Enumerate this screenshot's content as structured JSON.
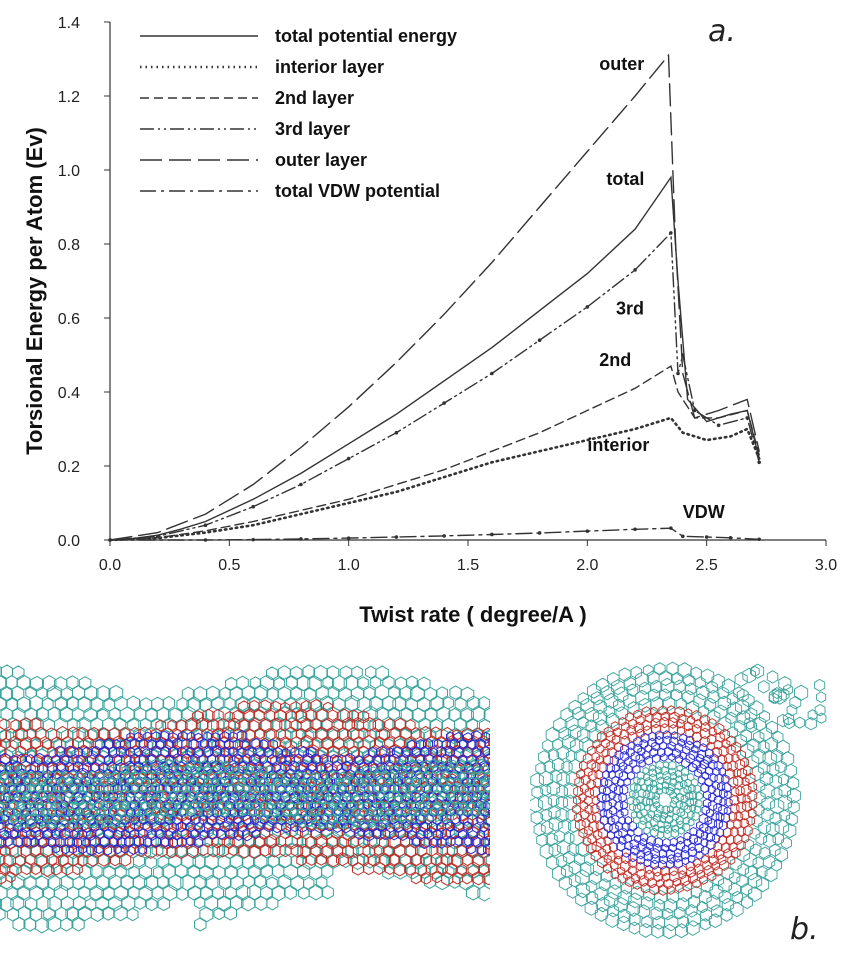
{
  "panel_labels": {
    "a": "a.",
    "b": "b."
  },
  "chart_data": {
    "type": "line",
    "title": "",
    "xlabel": "Twist rate ( degree/A )",
    "ylabel": "Torsional Energy per Atom (Ev)",
    "xlim": [
      0.0,
      3.0
    ],
    "ylim": [
      0.0,
      1.4
    ],
    "x_ticks": [
      "0.0",
      "0.5",
      "1.0",
      "1.5",
      "2.0",
      "2.5",
      "3.0"
    ],
    "y_ticks": [
      "0.0",
      "0.2",
      "0.4",
      "0.6",
      "0.8",
      "1.0",
      "1.2",
      "1.4"
    ],
    "grid": false,
    "legend_position": "top-left",
    "series": [
      {
        "name": "total potential energy",
        "style": "solid",
        "color": "#333333",
        "x": [
          0,
          0.1,
          0.2,
          0.3,
          0.4,
          0.6,
          0.8,
          1.0,
          1.2,
          1.4,
          1.6,
          1.8,
          2.0,
          2.2,
          2.35,
          2.38,
          2.42,
          2.5,
          2.6,
          2.67,
          2.72
        ],
        "y": [
          0,
          0.004,
          0.013,
          0.03,
          0.05,
          0.11,
          0.18,
          0.26,
          0.34,
          0.43,
          0.52,
          0.62,
          0.72,
          0.84,
          0.98,
          0.7,
          0.38,
          0.32,
          0.34,
          0.35,
          0.22
        ]
      },
      {
        "name": "interior layer",
        "style": "dotted",
        "color": "#333333",
        "x": [
          0,
          0.2,
          0.4,
          0.6,
          0.8,
          1.0,
          1.2,
          1.4,
          1.6,
          1.8,
          2.0,
          2.2,
          2.35,
          2.4,
          2.5,
          2.6,
          2.67,
          2.72
        ],
        "y": [
          0,
          0.005,
          0.02,
          0.04,
          0.07,
          0.1,
          0.13,
          0.17,
          0.21,
          0.24,
          0.27,
          0.3,
          0.33,
          0.29,
          0.27,
          0.28,
          0.3,
          0.22
        ]
      },
      {
        "name": "2nd layer",
        "style": "dashed",
        "color": "#333333",
        "x": [
          0,
          0.2,
          0.4,
          0.6,
          0.8,
          1.0,
          1.2,
          1.4,
          1.6,
          1.8,
          2.0,
          2.2,
          2.35,
          2.38,
          2.45,
          2.55,
          2.67,
          2.72
        ],
        "y": [
          0,
          0.006,
          0.025,
          0.05,
          0.08,
          0.11,
          0.15,
          0.19,
          0.24,
          0.29,
          0.35,
          0.41,
          0.47,
          0.4,
          0.33,
          0.33,
          0.35,
          0.23
        ]
      },
      {
        "name": "3rd layer",
        "style": "dashdotdot",
        "color": "#333333",
        "x": [
          0,
          0.2,
          0.4,
          0.6,
          0.8,
          1.0,
          1.2,
          1.4,
          1.6,
          1.8,
          2.0,
          2.2,
          2.35,
          2.38,
          2.4,
          2.45,
          2.55,
          2.67,
          2.72
        ],
        "y": [
          0,
          0.01,
          0.04,
          0.09,
          0.15,
          0.22,
          0.29,
          0.37,
          0.45,
          0.54,
          0.63,
          0.73,
          0.83,
          0.45,
          0.5,
          0.35,
          0.31,
          0.33,
          0.21
        ]
      },
      {
        "name": "outer layer",
        "style": "longdash",
        "color": "#333333",
        "x": [
          0,
          0.2,
          0.4,
          0.6,
          0.8,
          1.0,
          1.2,
          1.4,
          1.6,
          1.8,
          2.0,
          2.2,
          2.34,
          2.37,
          2.4,
          2.45,
          2.55,
          2.67,
          2.72
        ],
        "y": [
          0,
          0.02,
          0.07,
          0.15,
          0.25,
          0.36,
          0.48,
          0.61,
          0.75,
          0.9,
          1.05,
          1.2,
          1.31,
          0.8,
          0.45,
          0.33,
          0.35,
          0.38,
          0.24
        ]
      },
      {
        "name": "total VDW potential",
        "style": "dashdot",
        "color": "#333333",
        "x": [
          0,
          0.4,
          0.6,
          0.8,
          1.0,
          1.2,
          1.4,
          1.6,
          1.8,
          2.0,
          2.2,
          2.35,
          2.4,
          2.5,
          2.6,
          2.72
        ],
        "y": [
          0,
          0,
          0.001,
          0.003,
          0.005,
          0.008,
          0.011,
          0.015,
          0.019,
          0.024,
          0.029,
          0.032,
          0.01,
          0.008,
          0.006,
          0.002
        ]
      }
    ],
    "annotations": [
      {
        "text": "outer",
        "x": 2.05,
        "y": 1.27
      },
      {
        "text": "total",
        "x": 2.08,
        "y": 0.96
      },
      {
        "text": "3rd",
        "x": 2.12,
        "y": 0.61
      },
      {
        "text": "2nd",
        "x": 2.05,
        "y": 0.47
      },
      {
        "text": "interior",
        "x": 2.0,
        "y": 0.24
      },
      {
        "text": "VDW",
        "x": 2.4,
        "y": 0.06
      }
    ]
  },
  "colors": {
    "teal": "#3aa39b",
    "red": "#c0302a",
    "blue": "#2a2ad0",
    "ink": "#333333"
  }
}
